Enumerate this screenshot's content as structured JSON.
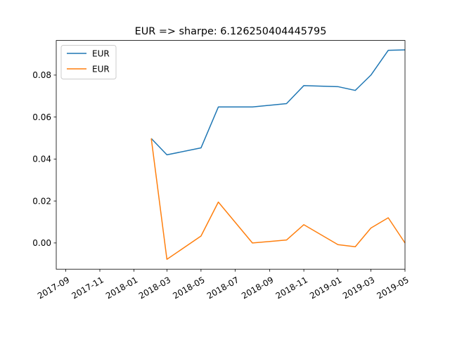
{
  "chart_data": {
    "type": "line",
    "title": "EUR => sharpe: 6.126250404445795",
    "xlabel": "",
    "ylabel": "",
    "x_range": [
      "2017-08-15",
      "2019-05-01"
    ],
    "y_range": [
      -0.0125,
      0.0965
    ],
    "x_ticks": [
      "2017-09",
      "2017-11",
      "2018-01",
      "2018-03",
      "2018-05",
      "2018-07",
      "2018-09",
      "2018-11",
      "2019-01",
      "2019-03",
      "2019-05"
    ],
    "y_ticks": [
      0.0,
      0.02,
      0.04,
      0.06,
      0.08
    ],
    "y_tick_labels": [
      "0.00",
      "0.02",
      "0.04",
      "0.06",
      "0.08"
    ],
    "grid": false,
    "legend_position": "top-left",
    "series": [
      {
        "name": "EUR",
        "color": "#1f77b4",
        "points": [
          {
            "x": "2018-02-01",
            "y": 0.0498
          },
          {
            "x": "2018-03-01",
            "y": 0.042
          },
          {
            "x": "2018-05-01",
            "y": 0.0453
          },
          {
            "x": "2018-06-01",
            "y": 0.0648
          },
          {
            "x": "2018-08-01",
            "y": 0.0648
          },
          {
            "x": "2018-10-01",
            "y": 0.0664
          },
          {
            "x": "2018-11-01",
            "y": 0.075
          },
          {
            "x": "2019-01-01",
            "y": 0.0745
          },
          {
            "x": "2019-02-01",
            "y": 0.0727
          },
          {
            "x": "2019-03-01",
            "y": 0.08
          },
          {
            "x": "2019-04-01",
            "y": 0.0918
          },
          {
            "x": "2019-05-01",
            "y": 0.092
          }
        ]
      },
      {
        "name": "EUR",
        "color": "#ff7f0e",
        "points": [
          {
            "x": "2018-02-01",
            "y": 0.0498
          },
          {
            "x": "2018-03-01",
            "y": -0.0078
          },
          {
            "x": "2018-05-01",
            "y": 0.0033
          },
          {
            "x": "2018-06-01",
            "y": 0.0195
          },
          {
            "x": "2018-08-01",
            "y": 0.0
          },
          {
            "x": "2018-10-01",
            "y": 0.0014
          },
          {
            "x": "2018-11-01",
            "y": 0.0087
          },
          {
            "x": "2019-01-01",
            "y": -0.0008
          },
          {
            "x": "2019-02-01",
            "y": -0.0018
          },
          {
            "x": "2019-03-01",
            "y": 0.0071
          },
          {
            "x": "2019-04-01",
            "y": 0.012
          },
          {
            "x": "2019-05-01",
            "y": 0.0
          }
        ]
      }
    ]
  }
}
